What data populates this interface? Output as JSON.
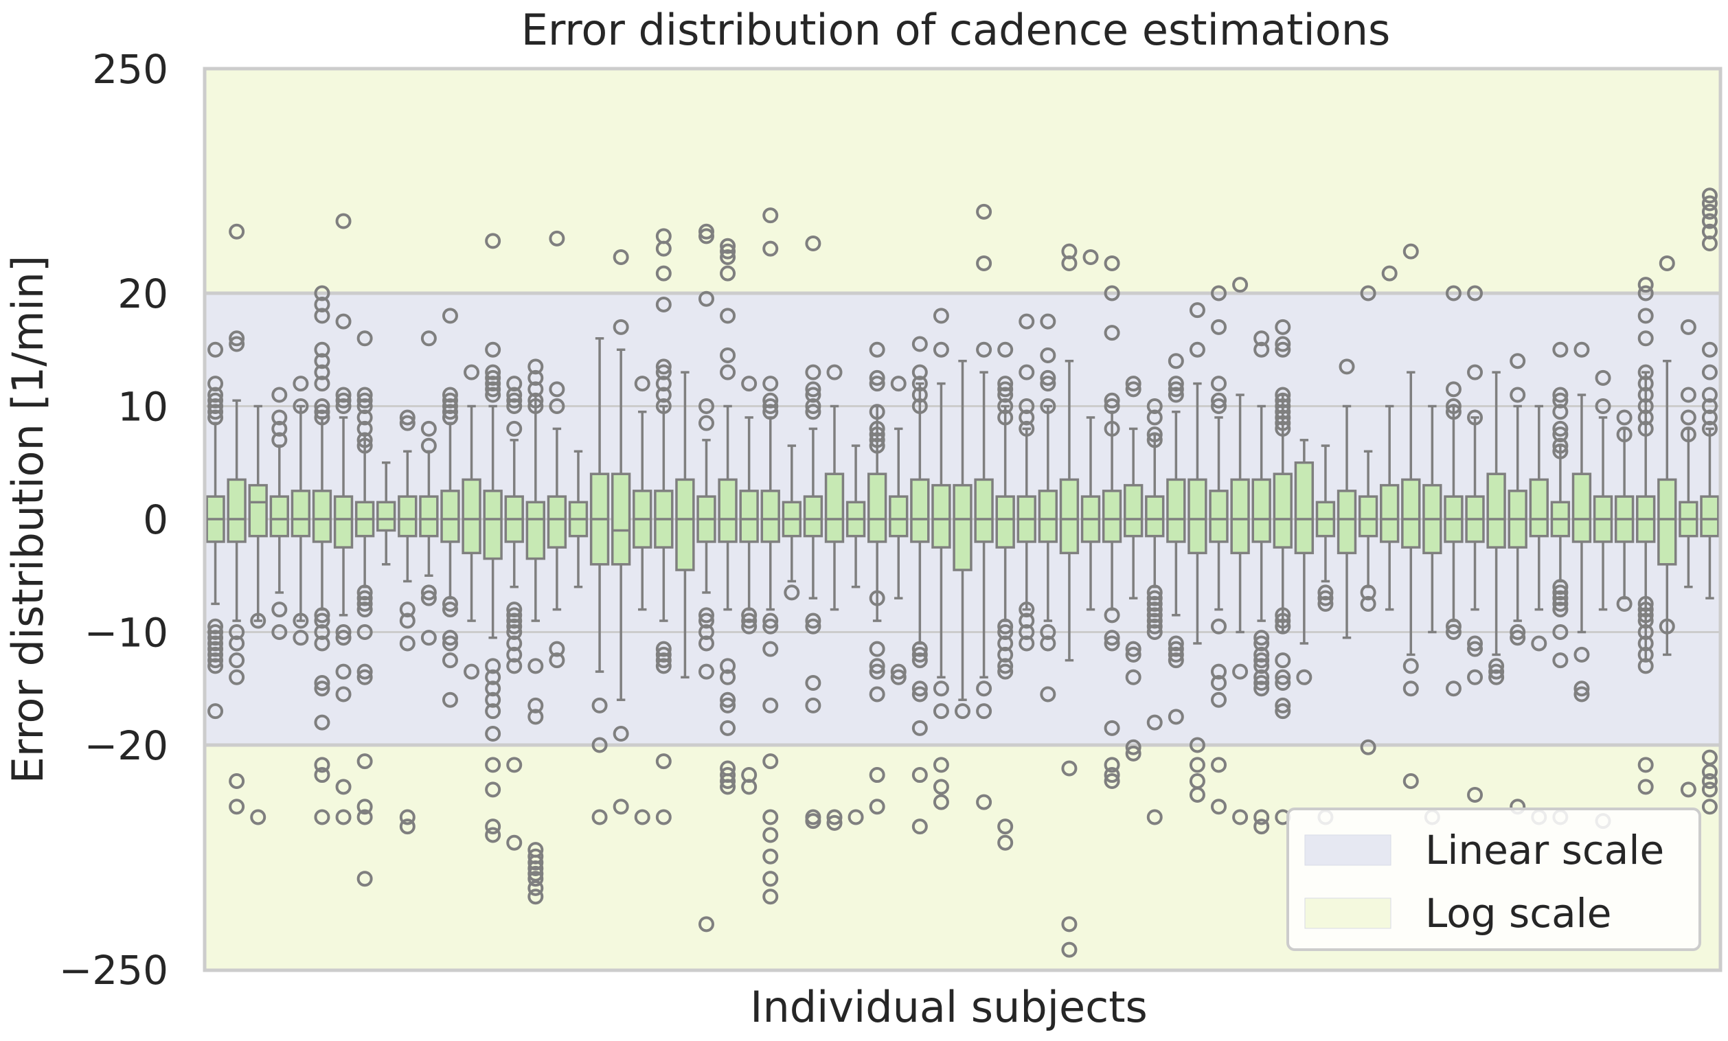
{
  "chart_data": {
    "type": "box",
    "title": "Error distribution of cadence estimations",
    "xlabel": "Individual subjects",
    "ylabel": "Error distribution [1/min]",
    "ylim": [
      -250,
      250
    ],
    "y_scale": "symlog (linear between -20 and 20, log beyond)",
    "y_ticks": [
      {
        "value": 250,
        "label": "250"
      },
      {
        "value": 20,
        "label": "20"
      },
      {
        "value": 10,
        "label": "10"
      },
      {
        "value": 0,
        "label": "0"
      },
      {
        "value": -10,
        "label": "−10"
      },
      {
        "value": -20,
        "label": "−20"
      },
      {
        "value": -250,
        "label": "−250"
      }
    ],
    "regions": [
      {
        "label": "Linear scale",
        "from": -20,
        "to": 20,
        "color": "#e6e8f2"
      },
      {
        "label": "Log scale",
        "from": 20,
        "to": 250,
        "color": "#f4f9de"
      },
      {
        "label": "Log scale",
        "from": -250,
        "to": -20,
        "color": "#f4f9de"
      }
    ],
    "legend": {
      "position": "lower-right",
      "entries": [
        {
          "label": "Linear scale",
          "color": "#e6e8f2"
        },
        {
          "label": "Log scale",
          "color": "#f4f9de"
        }
      ]
    },
    "grid": true,
    "colors": {
      "box_fill": "#c7e9b4",
      "box_edge": "#7f7f7f",
      "grid": "#cccccc",
      "frame": "#cccccc"
    },
    "boxes": [
      {
        "q1": -2,
        "median": 0,
        "q3": 2,
        "wl": -7.5,
        "wh": 8.5,
        "fliers": [
          15,
          12,
          11,
          10.5,
          10,
          9.5,
          9,
          -9.5,
          -10,
          -10.5,
          -11,
          -11.5,
          -12,
          -12.5,
          -13,
          -17
        ]
      },
      {
        "q1": -2,
        "median": 0,
        "q3": 3.5,
        "wl": -9,
        "wh": 10.5,
        "fliers": [
          40,
          16,
          15.5,
          -10,
          -11,
          -12.5,
          -14,
          -30,
          -40
        ]
      },
      {
        "q1": -1.5,
        "median": 1.5,
        "q3": 3,
        "wl": -9,
        "wh": 10,
        "fliers": [
          -9,
          -45
        ]
      },
      {
        "q1": -1.5,
        "median": 0,
        "q3": 2,
        "wl": -6.5,
        "wh": 6.5,
        "fliers": [
          11,
          9,
          8,
          7,
          -8,
          -10
        ]
      },
      {
        "q1": -1.5,
        "median": 0,
        "q3": 2.5,
        "wl": -9,
        "wh": 10,
        "fliers": [
          12,
          10,
          -9,
          -10.5
        ]
      },
      {
        "q1": -2,
        "median": 0,
        "q3": 2.5,
        "wl": -8,
        "wh": 9,
        "fliers": [
          20,
          19,
          18,
          15,
          14,
          13,
          12,
          10,
          9.5,
          9,
          -8.5,
          -9,
          -10,
          -11,
          -14.5,
          -15,
          -18,
          -25,
          -28,
          -45
        ]
      },
      {
        "q1": -2.5,
        "median": 0,
        "q3": 2,
        "wl": -8.5,
        "wh": 9,
        "fliers": [
          45,
          17.5,
          11,
          10.5,
          10,
          -10,
          -10.5,
          -13.5,
          -15.5,
          -32,
          -45
        ]
      },
      {
        "q1": -1.5,
        "median": 0,
        "q3": 1.5,
        "wl": -6,
        "wh": 7.5,
        "fliers": [
          16,
          11,
          10.5,
          10,
          9,
          8,
          7,
          6.5,
          -6.5,
          -7,
          -7.5,
          -8,
          -10,
          -13.5,
          -14,
          -24,
          -40,
          -45,
          -90
        ]
      },
      {
        "q1": -1,
        "median": 0,
        "q3": 1.5,
        "wl": -4,
        "wh": 5,
        "fliers": []
      },
      {
        "q1": -1.5,
        "median": 0,
        "q3": 2,
        "wl": -5.5,
        "wh": 6,
        "fliers": [
          9,
          8.5,
          -8,
          -9,
          -11,
          -45,
          -50
        ]
      },
      {
        "q1": -1.5,
        "median": 0,
        "q3": 2,
        "wl": -5,
        "wh": 6,
        "fliers": [
          16,
          8,
          6.5,
          -6.5,
          -7,
          -10.5
        ]
      },
      {
        "q1": -2,
        "median": 0,
        "q3": 2.5,
        "wl": -7,
        "wh": 8.5,
        "fliers": [
          18,
          11,
          10.5,
          10,
          9.5,
          9,
          -7.5,
          -8,
          -10.5,
          -11,
          -12.5,
          -16
        ]
      },
      {
        "q1": -3,
        "median": 0,
        "q3": 3.5,
        "wl": -9,
        "wh": 10,
        "fliers": [
          13,
          -13.5
        ]
      },
      {
        "q1": -3.5,
        "median": 0,
        "q3": 2.5,
        "wl": -10.5,
        "wh": 10,
        "fliers": [
          36,
          15,
          13,
          12.5,
          12,
          11.5,
          11,
          -13,
          -14,
          -15,
          -16,
          -17,
          -19,
          -25,
          -33,
          -50,
          -55
        ]
      },
      {
        "q1": -2,
        "median": 0,
        "q3": 2,
        "wl": -6,
        "wh": 7,
        "fliers": [
          12,
          11,
          10.5,
          10,
          8,
          -8,
          -8.5,
          -9,
          -9.5,
          -10,
          -11,
          -12,
          -13,
          -25,
          -60
        ]
      },
      {
        "q1": -3.5,
        "median": 0,
        "q3": 1.5,
        "wl": -9,
        "wh": 11,
        "fliers": [
          13.5,
          12.5,
          11.5,
          10.5,
          10,
          -13,
          -16.5,
          -17.5,
          -65,
          -70,
          -75,
          -80,
          -85,
          -90,
          -100,
          -110
        ]
      },
      {
        "q1": -2.5,
        "median": 0,
        "q3": 2,
        "wl": -8,
        "wh": 8,
        "fliers": [
          37,
          11.5,
          10,
          -11.5,
          -12.5
        ]
      },
      {
        "q1": -1.5,
        "median": 0,
        "q3": 1.5,
        "wl": -6,
        "wh": 6,
        "fliers": []
      },
      {
        "q1": -4,
        "median": 0,
        "q3": 4,
        "wl": -13.5,
        "wh": 16,
        "fliers": [
          -16.5,
          -20,
          -45
        ]
      },
      {
        "q1": -4,
        "median": -1,
        "q3": 4,
        "wl": -16,
        "wh": 15,
        "fliers": [
          30,
          17,
          -19,
          -40
        ]
      },
      {
        "q1": -2.5,
        "median": 0,
        "q3": 2.5,
        "wl": -8,
        "wh": 9.5,
        "fliers": [
          12,
          -45
        ]
      },
      {
        "q1": -2.5,
        "median": 0,
        "q3": 2.5,
        "wl": -9,
        "wh": 10,
        "fliers": [
          38,
          33,
          25,
          19,
          13.5,
          13,
          12,
          11,
          10,
          -11.5,
          -12,
          -12.5,
          -13,
          -24,
          -45
        ]
      },
      {
        "q1": -4.5,
        "median": 0,
        "q3": 3.5,
        "wl": -14,
        "wh": 13,
        "fliers": []
      },
      {
        "q1": -2,
        "median": 0,
        "q3": 2,
        "wl": -6.5,
        "wh": 7,
        "fliers": [
          40,
          38,
          19.5,
          10,
          8.5,
          -8.5,
          -9,
          -10,
          -11,
          -13.5,
          -150
        ]
      },
      {
        "q1": -2,
        "median": 0,
        "q3": 3.5,
        "wl": -8,
        "wh": 10,
        "fliers": [
          34,
          32,
          30,
          25,
          18,
          14.5,
          13,
          -13,
          -14,
          -16,
          -16.5,
          -18.5,
          -26,
          -28,
          -30,
          -32
        ]
      },
      {
        "q1": -2,
        "median": 0,
        "q3": 2.5,
        "wl": -8,
        "wh": 9,
        "fliers": [
          12,
          -8.5,
          -9,
          -9.5,
          -28,
          -32
        ]
      },
      {
        "q1": -2,
        "median": 0,
        "q3": 2.5,
        "wl": -8,
        "wh": 9,
        "fliers": [
          48,
          33,
          12,
          10.5,
          10,
          9.5,
          -9,
          -9.5,
          -11.5,
          -16.5,
          -24,
          -45,
          -55,
          -70,
          -90,
          -110
        ]
      },
      {
        "q1": -1.5,
        "median": 0,
        "q3": 1.5,
        "wl": -5.5,
        "wh": 6.5,
        "fliers": [
          -6.5
        ]
      },
      {
        "q1": -1.5,
        "median": 0,
        "q3": 2,
        "wl": -7,
        "wh": 8,
        "fliers": [
          35,
          13,
          11.5,
          11,
          10,
          9.5,
          -9,
          -9.5,
          -14.5,
          -16.5,
          -45,
          -47
        ]
      },
      {
        "q1": -2,
        "median": 0,
        "q3": 4,
        "wl": -8,
        "wh": 10,
        "fliers": [
          13,
          -45,
          -48
        ]
      },
      {
        "q1": -1.5,
        "median": 0,
        "q3": 1.5,
        "wl": -6,
        "wh": 6.5,
        "fliers": [
          -45
        ]
      },
      {
        "q1": -2,
        "median": 0,
        "q3": 4,
        "wl": -9,
        "wh": 10,
        "fliers": [
          15,
          12.5,
          12,
          9.5,
          8,
          7.5,
          7,
          6.5,
          -7,
          -11.5,
          -13,
          -13.5,
          -15.5,
          -28,
          -40
        ]
      },
      {
        "q1": -1.5,
        "median": 0,
        "q3": 2,
        "wl": -7,
        "wh": 8,
        "fliers": [
          12,
          -13.5,
          -14
        ]
      },
      {
        "q1": -2,
        "median": 0,
        "q3": 3.5,
        "wl": -11,
        "wh": 12,
        "fliers": [
          15.5,
          13,
          12,
          11,
          10,
          -11.5,
          -12,
          -12.5,
          -15,
          -15.5,
          -18.5,
          -28,
          -50
        ]
      },
      {
        "q1": -2.5,
        "median": 0,
        "q3": 3,
        "wl": -14,
        "wh": 12,
        "fliers": [
          18,
          15,
          -15,
          -17,
          -25,
          -32,
          -38
        ]
      },
      {
        "q1": -4.5,
        "median": 0,
        "q3": 3,
        "wl": -16,
        "wh": 14,
        "fliers": [
          -17
        ]
      },
      {
        "q1": -2,
        "median": 0,
        "q3": 3.5,
        "wl": -14,
        "wh": 13,
        "fliers": [
          50,
          28,
          15,
          -15,
          -17,
          -38
        ]
      },
      {
        "q1": -2.5,
        "median": 0,
        "q3": 2,
        "wl": -9,
        "wh": 10,
        "fliers": [
          15,
          12,
          11.5,
          11,
          10,
          9,
          -9.5,
          -10,
          -11,
          -12,
          -13,
          -13.5,
          -50,
          -60
        ]
      },
      {
        "q1": -2,
        "median": 0,
        "q3": 2,
        "wl": -8,
        "wh": 8,
        "fliers": [
          17.5,
          13,
          10,
          9,
          8,
          -8,
          -9,
          -10,
          -11
        ]
      },
      {
        "q1": -2,
        "median": 0,
        "q3": 2.5,
        "wl": -9,
        "wh": 10,
        "fliers": [
          17.5,
          14.5,
          12.5,
          12,
          10,
          -10,
          -11,
          -15.5
        ]
      },
      {
        "q1": -3,
        "median": 0,
        "q3": 3.5,
        "wl": -12.5,
        "wh": 14,
        "fliers": [
          32,
          28,
          -26,
          -150,
          -200
        ]
      },
      {
        "q1": -2,
        "median": 0,
        "q3": 2,
        "wl": -8,
        "wh": 9,
        "fliers": [
          30
        ]
      },
      {
        "q1": -2,
        "median": 0,
        "q3": 2.5,
        "wl": -8,
        "wh": 9.5,
        "fliers": [
          28,
          20,
          16.5,
          10.5,
          10,
          8,
          -8.5,
          -10.5,
          -11,
          -18.5,
          -25,
          -28,
          -30
        ]
      },
      {
        "q1": -1.5,
        "median": 0,
        "q3": 3,
        "wl": -7,
        "wh": 8,
        "fliers": [
          12,
          11.5,
          -11.5,
          -12,
          -14,
          -20.5,
          -22
        ]
      },
      {
        "q1": -1.5,
        "median": 0,
        "q3": 2,
        "wl": -6,
        "wh": 7.5,
        "fliers": [
          10,
          9,
          7.5,
          7,
          -6.5,
          -7,
          -7.5,
          -8,
          -8.5,
          -9,
          -9.5,
          -10,
          -18,
          -45
        ]
      },
      {
        "q1": -2,
        "median": 0,
        "q3": 3.5,
        "wl": -8.5,
        "wh": 9.5,
        "fliers": [
          14,
          12,
          11.5,
          11,
          -11,
          -11.5,
          -12,
          -12.5,
          -17.5
        ]
      },
      {
        "q1": -3,
        "median": 0,
        "q3": 3.5,
        "wl": -11,
        "wh": 12,
        "fliers": [
          18.5,
          15,
          -20,
          -25,
          -30,
          -35
        ]
      },
      {
        "q1": -2,
        "median": 0,
        "q3": 2.5,
        "wl": -8,
        "wh": 9,
        "fliers": [
          20,
          17,
          12,
          10.5,
          10,
          -9.5,
          -13.5,
          -14.5,
          -16,
          -25,
          -40
        ]
      },
      {
        "q1": -3,
        "median": 0,
        "q3": 3.5,
        "wl": -10,
        "wh": 11,
        "fliers": [
          22,
          -13.5,
          -45
        ]
      },
      {
        "q1": -2,
        "median": 0,
        "q3": 3.5,
        "wl": -9,
        "wh": 10,
        "fliers": [
          16,
          15,
          -10.5,
          -11,
          -12,
          -12.5,
          -13,
          -14,
          -14.5,
          -15,
          -45,
          -50
        ]
      },
      {
        "q1": -2.5,
        "median": 0,
        "q3": 4,
        "wl": -10,
        "wh": 11,
        "fliers": [
          17,
          15.5,
          15,
          11,
          10.5,
          10,
          9.5,
          9,
          8.5,
          8,
          -8.5,
          -9,
          -9.5,
          -12.5,
          -14,
          -14.5,
          -16.5,
          -17,
          -45
        ]
      },
      {
        "q1": -3,
        "median": 0,
        "q3": 5,
        "wl": -11,
        "wh": 7,
        "fliers": [
          -14
        ]
      },
      {
        "q1": -1.5,
        "median": 0,
        "q3": 1.5,
        "wl": -5.5,
        "wh": 6.5,
        "fliers": [
          -6.5,
          -7,
          -7.5,
          -45
        ]
      },
      {
        "q1": -3,
        "median": 0,
        "q3": 2.5,
        "wl": -10.5,
        "wh": 10,
        "fliers": [
          13.5
        ]
      },
      {
        "q1": -1.5,
        "median": 0,
        "q3": 2,
        "wl": -6,
        "wh": 6,
        "fliers": [
          20,
          -6.5,
          -7.5,
          -20.5
        ]
      },
      {
        "q1": -2,
        "median": 0,
        "q3": 3,
        "wl": -8,
        "wh": 10,
        "fliers": [
          25
        ]
      },
      {
        "q1": -2.5,
        "median": 0,
        "q3": 3.5,
        "wl": -12,
        "wh": 13,
        "fliers": [
          32,
          -13,
          -15,
          -30
        ]
      },
      {
        "q1": -3,
        "median": 0,
        "q3": 3,
        "wl": -10,
        "wh": 10,
        "fliers": [
          -45
        ]
      },
      {
        "q1": -2,
        "median": 0,
        "q3": 2,
        "wl": -9,
        "wh": 10,
        "fliers": [
          20,
          11.5,
          10,
          9.5,
          -9.5,
          -10,
          -15
        ]
      },
      {
        "q1": -2,
        "median": 0,
        "q3": 2,
        "wl": -8,
        "wh": 9,
        "fliers": [
          20,
          13,
          9,
          -11,
          -11.5,
          -14,
          -35
        ]
      },
      {
        "q1": -2.5,
        "median": 0,
        "q3": 4,
        "wl": -12,
        "wh": 13,
        "fliers": [
          -13,
          -13.5,
          -14
        ]
      },
      {
        "q1": -2.5,
        "median": 0,
        "q3": 2.5,
        "wl": -9,
        "wh": 10,
        "fliers": [
          14,
          11,
          -10,
          -10.5,
          -40
        ]
      },
      {
        "q1": -1.5,
        "median": 0,
        "q3": 3.5,
        "wl": -8,
        "wh": 10,
        "fliers": [
          -11,
          -45
        ]
      },
      {
        "q1": -1.5,
        "median": 0,
        "q3": 1.5,
        "wl": -5.5,
        "wh": 6.5,
        "fliers": [
          15,
          11,
          10.5,
          9.5,
          8,
          7.5,
          6.5,
          6,
          -6,
          -6.5,
          -7,
          -7.5,
          -8,
          -10,
          -12.5,
          -45
        ]
      },
      {
        "q1": -2,
        "median": 0,
        "q3": 4,
        "wl": -10,
        "wh": 11,
        "fliers": [
          15,
          -12,
          -15,
          -15.5
        ]
      },
      {
        "q1": -2,
        "median": 0,
        "q3": 2,
        "wl": -8,
        "wh": 9,
        "fliers": [
          12.5,
          10,
          -47
        ]
      },
      {
        "q1": -2,
        "median": 0,
        "q3": 2,
        "wl": -7,
        "wh": 8,
        "fliers": [
          9,
          7.5,
          -7.5
        ]
      },
      {
        "q1": -2,
        "median": 0,
        "q3": 2,
        "wl": -12.5,
        "wh": 13,
        "fliers": [
          22,
          20,
          18,
          16,
          13,
          12,
          11,
          10,
          9,
          8,
          -7.5,
          -8,
          -8.5,
          -9,
          -10,
          -11,
          -12,
          -13,
          -25,
          -32
        ]
      },
      {
        "q1": -4,
        "median": 0,
        "q3": 3.5,
        "wl": -12,
        "wh": 14,
        "fliers": [
          28,
          -9.5
        ]
      },
      {
        "q1": -1.5,
        "median": 0,
        "q3": 1.5,
        "wl": -6,
        "wh": 8,
        "fliers": [
          17,
          11,
          9,
          7.5,
          -33
        ]
      },
      {
        "q1": -1.5,
        "median": 0,
        "q3": 2,
        "wl": -7,
        "wh": 8,
        "fliers": [
          60,
          55,
          50,
          45,
          40,
          35,
          15,
          13,
          11,
          10,
          9,
          8,
          -23,
          -27,
          -30,
          -33,
          -40
        ]
      }
    ]
  }
}
